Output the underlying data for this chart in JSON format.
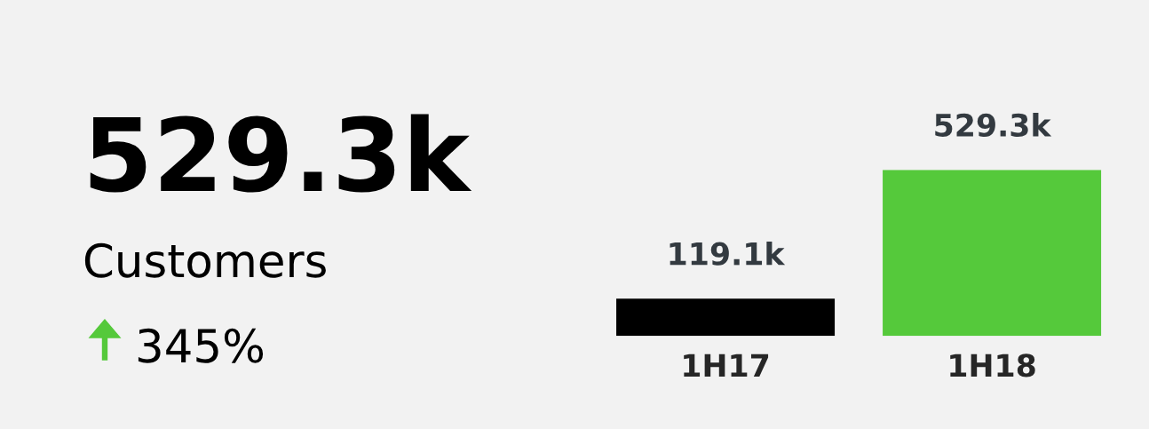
{
  "chart_data": [
    {
      "type": "other",
      "annotations": [
        "529.3k",
        "Customers",
        "345%"
      ],
      "color": "#55c93b"
    },
    {
      "type": "bar",
      "categories": [
        "1H17",
        "1H18"
      ],
      "values": [
        119.1,
        529.3
      ],
      "colors": [
        "#000000",
        "#55c93b"
      ],
      "value_labels": [
        "119.1k",
        "529.3k"
      ]
    }
  ]
}
